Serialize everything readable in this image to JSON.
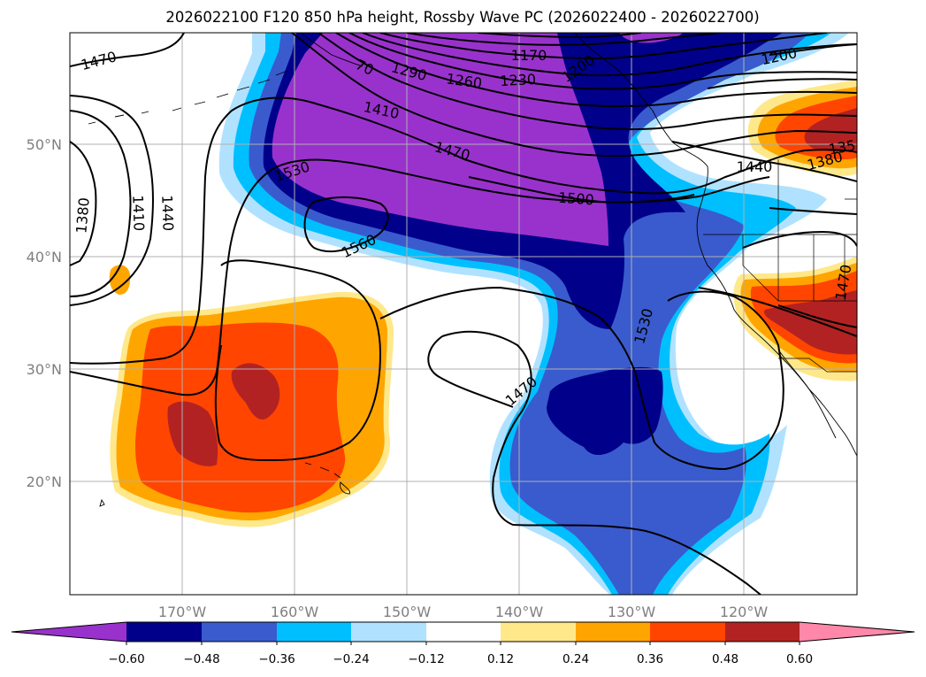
{
  "title": "2026022100 F120 850 hPa height, Rossby Wave PC (2026022400 - 2026022700)",
  "map": {
    "lon_range": [
      -180,
      -110
    ],
    "lat_range": [
      10,
      60
    ],
    "lon_ticks": [
      {
        "value": -170,
        "label": "170°W"
      },
      {
        "value": -160,
        "label": "160°W"
      },
      {
        "value": -150,
        "label": "150°W"
      },
      {
        "value": -140,
        "label": "140°W"
      },
      {
        "value": -130,
        "label": "130°W"
      },
      {
        "value": -120,
        "label": "120°W"
      }
    ],
    "lat_ticks": [
      {
        "value": 20,
        "label": "20°N"
      },
      {
        "value": 30,
        "label": "30°N"
      },
      {
        "value": 40,
        "label": "40°N"
      },
      {
        "value": 50,
        "label": "50°N"
      }
    ]
  },
  "contour_labels": [
    {
      "text": "1470",
      "lon": -177.3,
      "lat": 56.9
    },
    {
      "text": "1380",
      "lon": -178.4,
      "lat": 44.0
    },
    {
      "text": "1410",
      "lon": -175.5,
      "lat": 44.1
    },
    {
      "text": "1440",
      "lon": -172.2,
      "lat": 44.3
    },
    {
      "text": "70",
      "lon": -154.1,
      "lat": 57.0
    },
    {
      "text": "1290",
      "lon": -150.1,
      "lat": 56.1
    },
    {
      "text": "1260",
      "lon": -145.0,
      "lat": 55.7
    },
    {
      "text": "1230",
      "lon": -141.2,
      "lat": 55.8
    },
    {
      "text": "1170",
      "lon": -139.2,
      "lat": 57.9
    },
    {
      "text": "1200",
      "lon": -135.0,
      "lat": 57.2
    },
    {
      "text": "1200",
      "lon": -116.9,
      "lat": 58.2
    },
    {
      "text": "1410",
      "lon": -152.0,
      "lat": 52.9
    },
    {
      "text": "1470",
      "lon": -146.1,
      "lat": 49.9
    },
    {
      "text": "1530",
      "lon": -156.0,
      "lat": 48.5
    },
    {
      "text": "1500",
      "lon": -135.9,
      "lat": 45.9
    },
    {
      "text": "1560",
      "lon": -153.9,
      "lat": 40.9
    },
    {
      "text": "1440",
      "lon": -119.0,
      "lat": 48.5
    },
    {
      "text": "1380",
      "lon": -113.7,
      "lat": 49.0
    },
    {
      "text": "135",
      "lon": -111.6,
      "lat": 49.6
    },
    {
      "text": "1470",
      "lon": -111.1,
      "lat": 37.8
    },
    {
      "text": "1530",
      "lon": -128.5,
      "lat": 34.0
    },
    {
      "text": "1470",
      "lon": -141.5,
      "lat": 28.2
    }
  ],
  "colorbar": {
    "ticks": [
      "−0.60",
      "−0.48",
      "−0.36",
      "−0.24",
      "−0.12",
      "0.12",
      "0.24",
      "0.36",
      "0.48",
      "0.60"
    ],
    "colors": [
      "#9932cc",
      "#00008b",
      "#3a5bcd",
      "#00bfff",
      "#b0e2ff",
      "#ffffff",
      "#ffe88a",
      "#ffa500",
      "#ff4500",
      "#b22222",
      "#ff88aa"
    ]
  },
  "shading_colors": {
    "neg_048": "#00008b",
    "neg_060": "#9932cc",
    "neg_036": "#3a5bcd",
    "neg_024": "#00bfff",
    "neg_012": "#b0e2ff",
    "pos_012": "#ffe88a",
    "pos_024": "#ffa500",
    "pos_036": "#ff4500",
    "pos_048": "#b22222"
  }
}
